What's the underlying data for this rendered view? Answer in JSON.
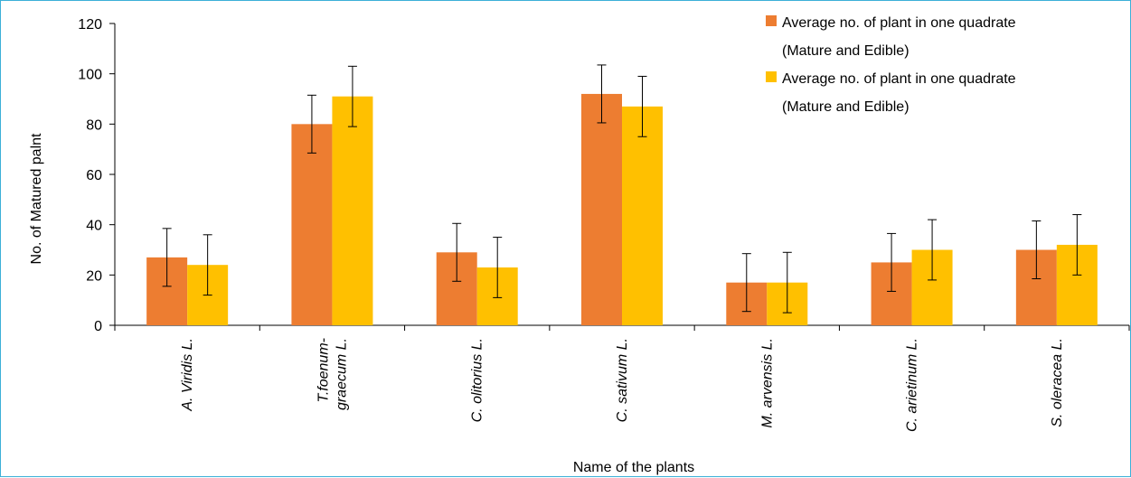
{
  "chart_data": {
    "type": "bar",
    "xlabel": "Name of the plants",
    "ylabel": "No. of Matured palnt",
    "ylim": [
      0,
      120
    ],
    "yticks": [
      0,
      20,
      40,
      60,
      80,
      100,
      120
    ],
    "categories": [
      [
        "A. Viridis L."
      ],
      [
        "T.foenum-",
        "graecum L."
      ],
      [
        "C. olitorius L."
      ],
      [
        "C. sativum L."
      ],
      [
        "M. arvensis L."
      ],
      [
        "C. arietinum L."
      ],
      [
        "S. oleracea L."
      ]
    ],
    "series": [
      {
        "name": [
          "Average no. of plant in one quadrate",
          "(Mature and Edible)"
        ],
        "color": "#ed7d31",
        "values": [
          27,
          80,
          29,
          92,
          17,
          25,
          30
        ],
        "error": [
          11.5,
          11.5,
          11.5,
          11.5,
          11.5,
          11.5,
          11.5
        ]
      },
      {
        "name": [
          "Average no. of plant in one quadrate",
          "(Mature and Edible)"
        ],
        "color": "#ffc000",
        "values": [
          24,
          91,
          23,
          87,
          17,
          30,
          32
        ],
        "error": [
          12,
          12,
          12,
          12,
          12,
          12,
          12
        ]
      }
    ],
    "legend_position": "top-right",
    "grid": false
  }
}
